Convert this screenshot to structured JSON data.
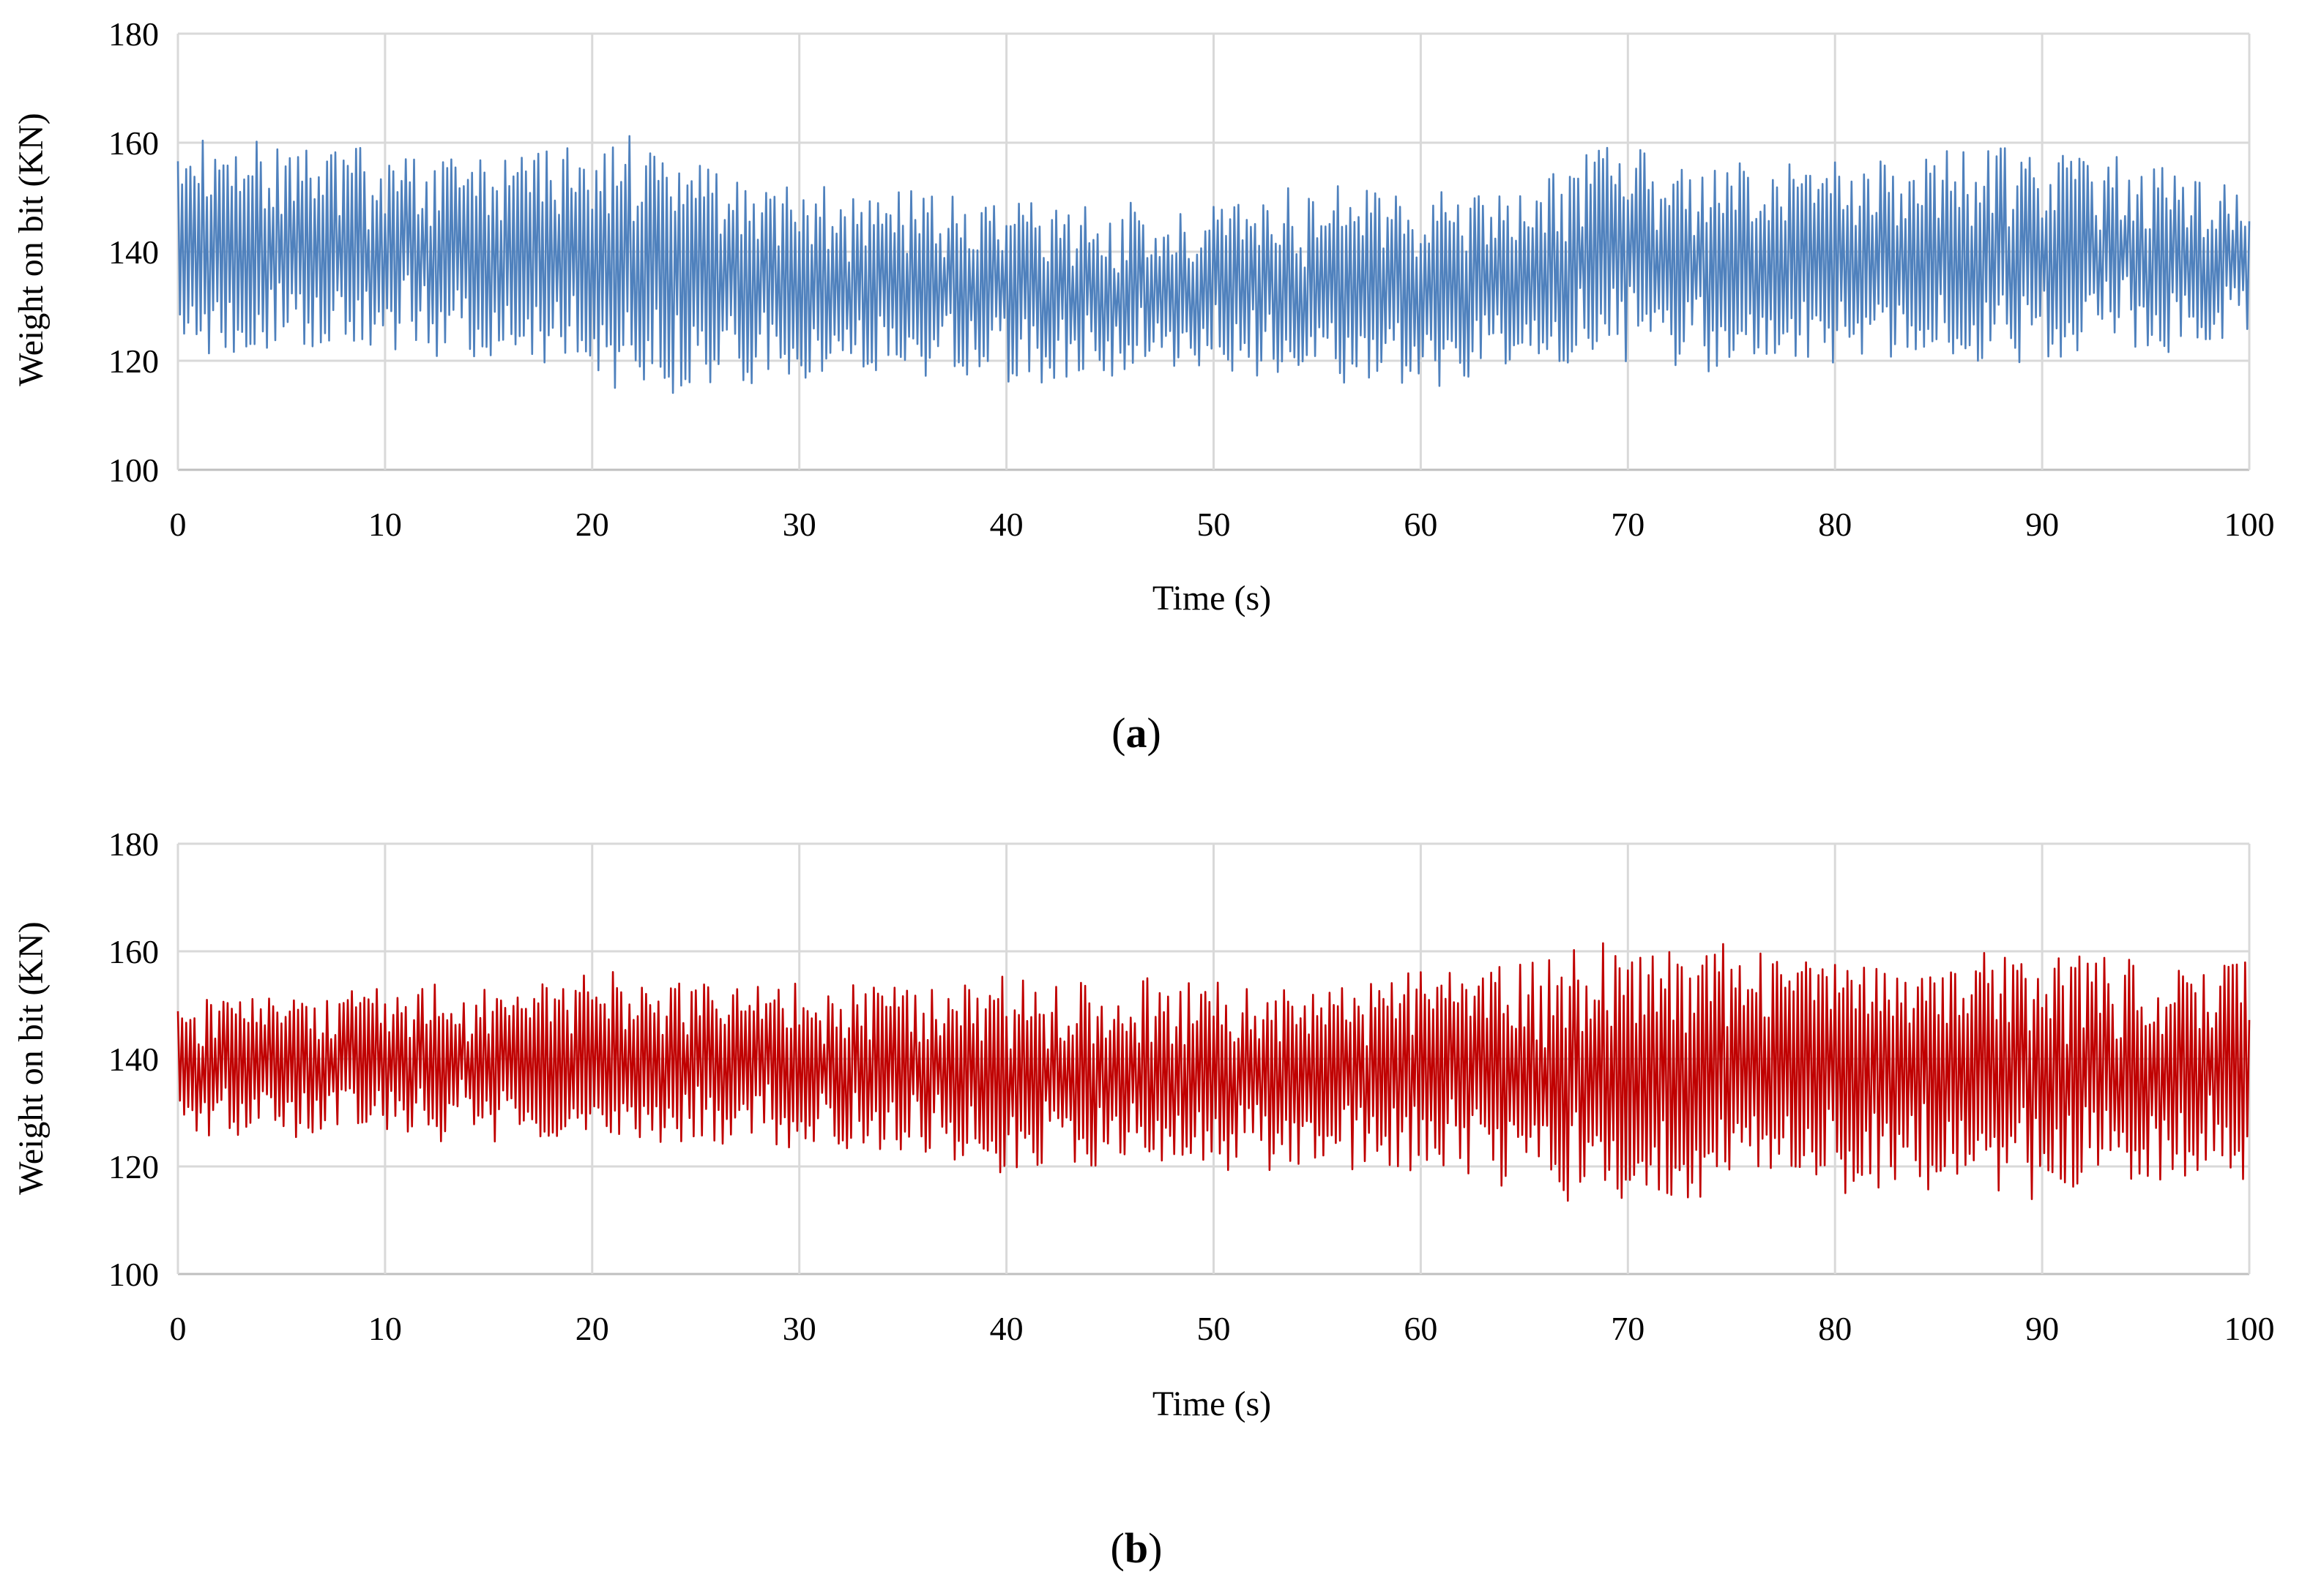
{
  "chart_data": [
    {
      "type": "line",
      "panel_label": "a",
      "title": "",
      "xlabel": "Time (s)",
      "ylabel": "Weight on bit (KN)",
      "xlim": [
        0,
        100
      ],
      "ylim": [
        100,
        180
      ],
      "x_ticks": [
        0,
        10,
        20,
        30,
        40,
        50,
        60,
        70,
        80,
        90,
        100
      ],
      "y_ticks": [
        100,
        120,
        140,
        160,
        180
      ],
      "grid": true,
      "legend": "none",
      "series": [
        {
          "name": "Weight on bit",
          "color": "#4f81bd",
          "sampling_interval_s": 0.1,
          "envelope": {
            "time_s": [
              0,
              5,
              10,
              15,
              20,
              22,
              25,
              30,
              35,
              40,
              45,
              50,
              55,
              60,
              65,
              68,
              70,
              72,
              75,
              80,
              85,
              90,
              95,
              100
            ],
            "center_kn": [
              140,
              141,
              140,
              139,
              138,
              138,
              136,
              134,
              134,
              133,
              133,
              134,
              134,
              133,
              135,
              139,
              140,
              137,
              137,
              138,
              139,
              140,
              139,
              138
            ],
            "amplitude_kn": [
              19,
              19,
              18,
              18,
              23,
              24,
              22,
              17,
              16,
              16,
              16,
              15,
              17,
              17,
              16,
              20,
              22,
              17,
              18,
              18,
              19,
              19,
              17,
              13
            ]
          }
        }
      ]
    },
    {
      "type": "line",
      "panel_label": "b",
      "title": "",
      "xlabel": "Time (s)",
      "ylabel": "Weight on bit (KN)",
      "xlim": [
        0,
        100
      ],
      "ylim": [
        100,
        180
      ],
      "x_ticks": [
        0,
        10,
        20,
        30,
        40,
        50,
        60,
        70,
        80,
        90,
        100
      ],
      "y_ticks": [
        100,
        120,
        140,
        160,
        180
      ],
      "grid": true,
      "legend": "none",
      "series": [
        {
          "name": "Weight on bit",
          "color": "#c00000",
          "sampling_interval_s": 0.1,
          "envelope": {
            "time_s": [
              0,
              10,
              20,
              30,
              40,
              50,
              55,
              60,
              65,
              70,
              75,
              80,
              85,
              90,
              95,
              100
            ],
            "center_kn": [
              139,
              139,
              140,
              139,
              137,
              137,
              137,
              138,
              137,
              137,
              138,
              137,
              138,
              137,
              137,
              138
            ],
            "amplitude_kn": [
              12,
              13,
              15,
              15,
              18,
              17,
              17,
              19,
              21,
              24,
              23,
              21,
              22,
              22,
              23,
              20
            ]
          }
        }
      ]
    }
  ]
}
